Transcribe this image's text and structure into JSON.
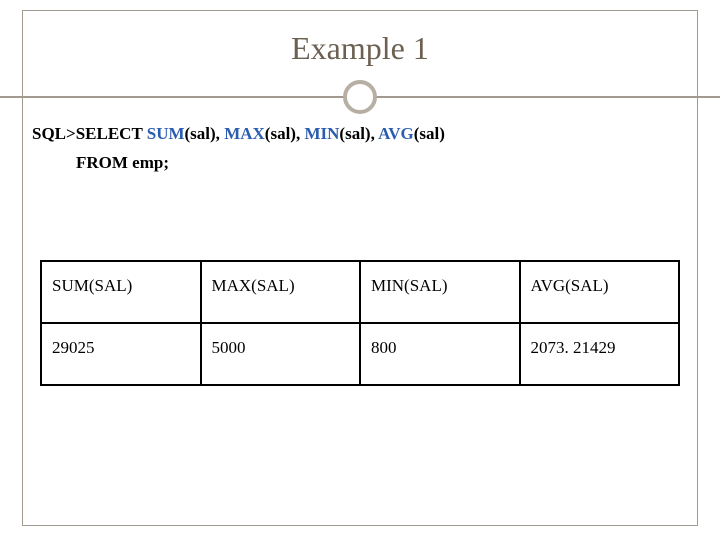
{
  "title": "Example 1",
  "sql": {
    "prefix": "SQL>SELECT  ",
    "fn1": "SUM",
    "arg1": "(sal), ",
    "fn2": "MAX",
    "arg2": "(sal), ",
    "fn3": "MIN",
    "arg3": "(sal), ",
    "fn4": "AVG",
    "arg4": "(sal)",
    "line2": "FROM  emp;"
  },
  "table": {
    "headers": [
      "SUM(SAL)",
      "MAX(SAL)",
      "MIN(SAL)",
      "AVG(SAL)"
    ],
    "row": [
      "29025",
      "5000",
      "800",
      "2073. 21429"
    ]
  },
  "colors": {
    "title_color": "#6b6052",
    "border_color": "#a39a8f",
    "circle_border": "#b7afa3",
    "sql_fn_color": "#2a5db0",
    "table_border": "#000000",
    "background": "#ffffff"
  }
}
